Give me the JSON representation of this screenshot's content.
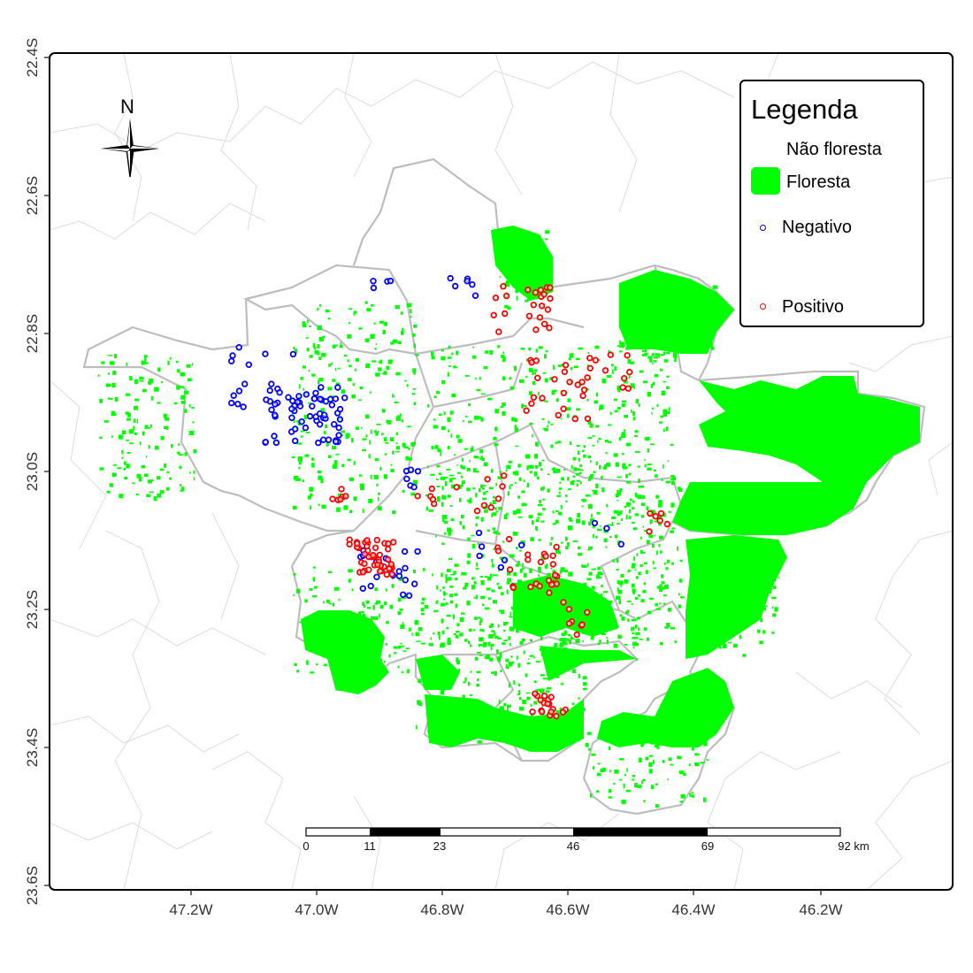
{
  "legend": {
    "title": "Legenda",
    "items": [
      {
        "label": "Não floresta",
        "symbol": "none"
      },
      {
        "label": "Floresta",
        "symbol": "fill",
        "color": "#00ff00"
      },
      {
        "label": "Negativo",
        "symbol": "point",
        "color": "#0000ff"
      },
      {
        "label": "Positivo",
        "symbol": "point",
        "color": "#ff0000"
      }
    ]
  },
  "north_arrow": {
    "label": "N",
    "icon": "compass-rose-icon"
  },
  "axes": {
    "x_ticks": [
      "47.2W",
      "47.0W",
      "46.8W",
      "46.6W",
      "46.4W",
      "46.2W"
    ],
    "y_ticks": [
      "22.4S",
      "22.6S",
      "22.8S",
      "23.0S",
      "23.2S",
      "23.4S",
      "23.6S"
    ]
  },
  "scale_bar": {
    "labels": [
      "0",
      "11",
      "23",
      "46",
      "69",
      "92 km"
    ]
  },
  "colors": {
    "forest": "#00ff00",
    "negative": "#0000ff",
    "positive": "#ff0000",
    "study_area_boundary": "#bfbfbf",
    "municipal_boundaries": "#d9d9d9"
  }
}
